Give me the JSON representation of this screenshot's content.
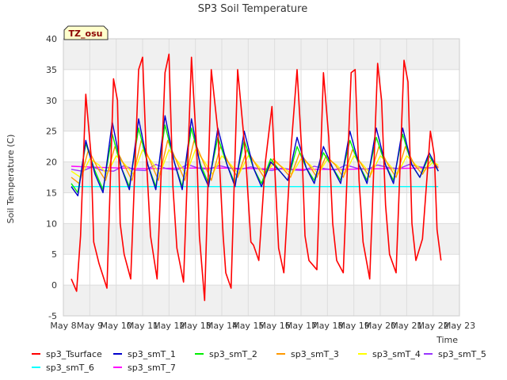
{
  "chart_data": {
    "type": "line",
    "title": "SP3 Soil Temperature",
    "xlabel": "Time",
    "ylabel": "Soil Temperature (C)",
    "badge": "TZ_osu",
    "ylim": [
      -5,
      40
    ],
    "yticks": [
      -5,
      0,
      5,
      10,
      15,
      20,
      25,
      30,
      35,
      40
    ],
    "xlim": [
      0,
      15
    ],
    "xticks": [
      0,
      1,
      2,
      3,
      4,
      5,
      6,
      7,
      8,
      9,
      10,
      11,
      12,
      13,
      14,
      15
    ],
    "xticklabels": [
      "May 8",
      "May 9",
      "May 10",
      "May 11",
      "May 12",
      "May 13",
      "May 14",
      "May 15",
      "May 16",
      "May 17",
      "May 18",
      "May 19",
      "May 20",
      "May 21",
      "May 22",
      "May 23"
    ],
    "bands": [
      [
        -5,
        0
      ],
      [
        5,
        10
      ],
      [
        15,
        20
      ],
      [
        25,
        30
      ],
      [
        35,
        40
      ]
    ],
    "grid": true,
    "legend_position": "bottom",
    "x_unit": "days since May 8",
    "series": [
      {
        "name": "sp3_Tsurface",
        "color": "#ff0000",
        "x": [
          0.3,
          0.5,
          0.65,
          0.85,
          1.05,
          1.15,
          1.35,
          1.65,
          1.9,
          2.05,
          2.15,
          2.3,
          2.55,
          2.85,
          3.0,
          3.15,
          3.3,
          3.55,
          3.85,
          4.0,
          4.15,
          4.3,
          4.55,
          4.85,
          5.05,
          5.15,
          5.35,
          5.6,
          5.85,
          6.05,
          6.15,
          6.35,
          6.6,
          6.9,
          7.1,
          7.2,
          7.4,
          7.65,
          7.9,
          8.05,
          8.15,
          8.35,
          8.6,
          8.85,
          9.05,
          9.15,
          9.3,
          9.6,
          9.85,
          10.05,
          10.2,
          10.35,
          10.6,
          10.9,
          11.05,
          11.2,
          11.35,
          11.6,
          11.9,
          12.05,
          12.2,
          12.35,
          12.6,
          12.9,
          13.05,
          13.2,
          13.35,
          13.6,
          13.9,
          14.05,
          14.15,
          14.3
        ],
        "y": [
          1.0,
          -1.0,
          8.0,
          31.0,
          21.0,
          7.0,
          3.5,
          -0.5,
          33.5,
          30.0,
          10.0,
          5.0,
          1.0,
          35.0,
          37.0,
          20.0,
          8.0,
          1.0,
          34.5,
          37.5,
          16.0,
          6.0,
          0.5,
          37.0,
          22.0,
          8.0,
          -2.5,
          35.0,
          25.0,
          8.0,
          2.0,
          -0.5,
          35.0,
          21.0,
          7.0,
          6.5,
          4.0,
          20.0,
          29.0,
          15.0,
          6.0,
          2.0,
          21.0,
          35.0,
          20.0,
          8.0,
          4.0,
          2.5,
          34.5,
          24.0,
          10.0,
          4.0,
          2.0,
          34.5,
          35.0,
          17.0,
          7.0,
          1.0,
          36.0,
          30.0,
          13.0,
          5.0,
          2.0,
          36.5,
          33.0,
          10.0,
          4.0,
          7.5,
          25.0,
          21.0,
          9.0,
          4.0
        ]
      },
      {
        "name": "sp3_smT_1",
        "color": "#0000cc",
        "x": [
          0.3,
          0.55,
          0.85,
          1.2,
          1.5,
          1.85,
          2.2,
          2.5,
          2.85,
          3.2,
          3.5,
          3.85,
          4.2,
          4.5,
          4.85,
          5.2,
          5.5,
          5.85,
          6.2,
          6.5,
          6.85,
          7.2,
          7.5,
          7.85,
          8.2,
          8.5,
          8.85,
          9.2,
          9.5,
          9.85,
          10.2,
          10.5,
          10.85,
          11.2,
          11.5,
          11.85,
          12.2,
          12.5,
          12.85,
          13.2,
          13.5,
          13.85,
          14.2
        ],
        "y": [
          16.0,
          14.5,
          23.5,
          18.0,
          15.0,
          26.5,
          19.0,
          15.5,
          27.0,
          19.5,
          15.5,
          27.5,
          20.0,
          15.5,
          27.0,
          19.0,
          16.0,
          25.5,
          19.5,
          16.0,
          25.0,
          19.0,
          16.0,
          20.0,
          18.5,
          17.0,
          24.0,
          19.0,
          16.5,
          22.5,
          19.0,
          16.5,
          25.0,
          19.5,
          16.5,
          25.5,
          19.5,
          16.5,
          25.5,
          19.5,
          17.5,
          21.5,
          18.5
        ]
      },
      {
        "name": "sp3_smT_2",
        "color": "#00ee00",
        "x": [
          0.3,
          0.55,
          0.85,
          1.2,
          1.5,
          1.85,
          2.2,
          2.5,
          2.85,
          3.2,
          3.5,
          3.85,
          4.2,
          4.5,
          4.85,
          5.2,
          5.5,
          5.85,
          6.2,
          6.5,
          6.85,
          7.2,
          7.5,
          7.85,
          8.2,
          8.5,
          8.85,
          9.2,
          9.5,
          9.85,
          10.2,
          10.5,
          10.85,
          11.2,
          11.5,
          11.85,
          12.2,
          12.5,
          12.85,
          13.2,
          13.5,
          13.85,
          14.2
        ],
        "y": [
          16.5,
          15.0,
          23.0,
          18.5,
          15.5,
          24.5,
          19.0,
          16.0,
          25.5,
          19.5,
          16.0,
          26.0,
          20.0,
          16.0,
          25.5,
          19.5,
          16.5,
          24.0,
          19.5,
          16.5,
          23.5,
          19.0,
          16.5,
          20.5,
          18.5,
          17.0,
          22.5,
          19.0,
          17.0,
          21.5,
          19.0,
          17.0,
          23.5,
          19.5,
          17.0,
          24.0,
          19.5,
          17.0,
          24.5,
          19.5,
          17.5,
          21.0,
          18.5
        ]
      },
      {
        "name": "sp3_smT_3",
        "color": "#ff9900",
        "x": [
          0.3,
          0.6,
          0.95,
          1.3,
          1.6,
          1.95,
          2.3,
          2.6,
          2.95,
          3.3,
          3.6,
          3.95,
          4.3,
          4.6,
          4.95,
          5.3,
          5.6,
          5.95,
          6.3,
          6.6,
          6.95,
          7.3,
          7.6,
          7.95,
          8.3,
          8.6,
          8.95,
          9.3,
          9.6,
          9.95,
          10.3,
          10.6,
          10.95,
          11.3,
          11.6,
          11.95,
          12.3,
          12.6,
          12.95,
          13.3,
          13.6,
          13.95,
          14.2
        ],
        "y": [
          17.5,
          16.5,
          22.0,
          19.0,
          17.0,
          22.5,
          19.5,
          17.0,
          23.5,
          20.0,
          17.0,
          23.5,
          20.0,
          17.0,
          23.5,
          20.0,
          17.0,
          22.5,
          19.5,
          17.5,
          22.0,
          19.5,
          17.5,
          20.5,
          19.0,
          17.5,
          21.5,
          19.5,
          17.5,
          21.0,
          19.5,
          17.5,
          22.0,
          19.5,
          17.5,
          22.5,
          19.5,
          17.5,
          22.5,
          19.5,
          18.0,
          20.5,
          19.0
        ]
      },
      {
        "name": "sp3_smT_4",
        "color": "#ffff00",
        "x": [
          0.3,
          0.65,
          1.0,
          1.35,
          1.65,
          2.0,
          2.35,
          2.65,
          3.0,
          3.35,
          3.65,
          4.0,
          4.35,
          4.65,
          5.0,
          5.35,
          5.65,
          6.0,
          6.35,
          6.65,
          7.0,
          7.35,
          7.65,
          8.0,
          8.35,
          8.65,
          9.0,
          9.35,
          9.65,
          10.0,
          10.35,
          10.65,
          11.0,
          11.35,
          11.65,
          12.0,
          12.35,
          12.65,
          13.0,
          13.35,
          13.65,
          14.0,
          14.2
        ],
        "y": [
          18.5,
          17.5,
          20.5,
          19.5,
          18.0,
          21.0,
          19.5,
          18.0,
          22.0,
          20.0,
          18.0,
          22.0,
          20.0,
          18.0,
          22.0,
          20.0,
          18.0,
          21.0,
          19.5,
          18.0,
          21.0,
          19.5,
          18.0,
          20.0,
          19.0,
          18.0,
          20.5,
          19.5,
          18.0,
          20.5,
          19.5,
          18.0,
          21.0,
          19.5,
          18.0,
          21.0,
          19.5,
          18.0,
          21.0,
          19.5,
          18.5,
          20.0,
          19.5
        ]
      },
      {
        "name": "sp3_smT_5",
        "color": "#9933ff",
        "x": [
          0.3,
          0.7,
          1.1,
          1.5,
          1.9,
          2.3,
          2.7,
          3.1,
          3.5,
          3.9,
          4.3,
          4.7,
          5.1,
          5.5,
          5.9,
          6.3,
          6.7,
          7.1,
          7.5,
          7.9,
          8.3,
          8.7,
          9.1,
          9.5,
          9.9,
          10.3,
          10.7,
          11.1,
          11.5,
          11.9,
          12.3,
          12.7,
          13.1,
          13.5,
          13.9,
          14.2
        ],
        "y": [
          18.8,
          18.5,
          19.2,
          18.6,
          18.5,
          19.4,
          18.7,
          18.6,
          19.6,
          18.9,
          18.7,
          19.6,
          19.0,
          18.8,
          19.4,
          19.0,
          18.8,
          19.2,
          18.8,
          18.6,
          19.0,
          18.7,
          18.6,
          19.3,
          18.9,
          18.7,
          19.5,
          19.0,
          18.8,
          19.5,
          19.1,
          18.9,
          19.6,
          19.2,
          19.0,
          19.3
        ]
      },
      {
        "name": "sp3_smT_6",
        "color": "#00ffff",
        "x": [
          0.3,
          14.2
        ],
        "y": [
          16.0,
          16.0
        ]
      },
      {
        "name": "sp3_smT_7",
        "color": "#ff00ff",
        "x": [
          0.3,
          1.5,
          3.0,
          4.5,
          6.0,
          7.5,
          9.0,
          10.5,
          12.0,
          13.5,
          14.2
        ],
        "y": [
          19.3,
          19.1,
          18.9,
          19.0,
          19.0,
          18.9,
          18.8,
          18.8,
          18.9,
          19.0,
          19.1
        ]
      }
    ]
  }
}
